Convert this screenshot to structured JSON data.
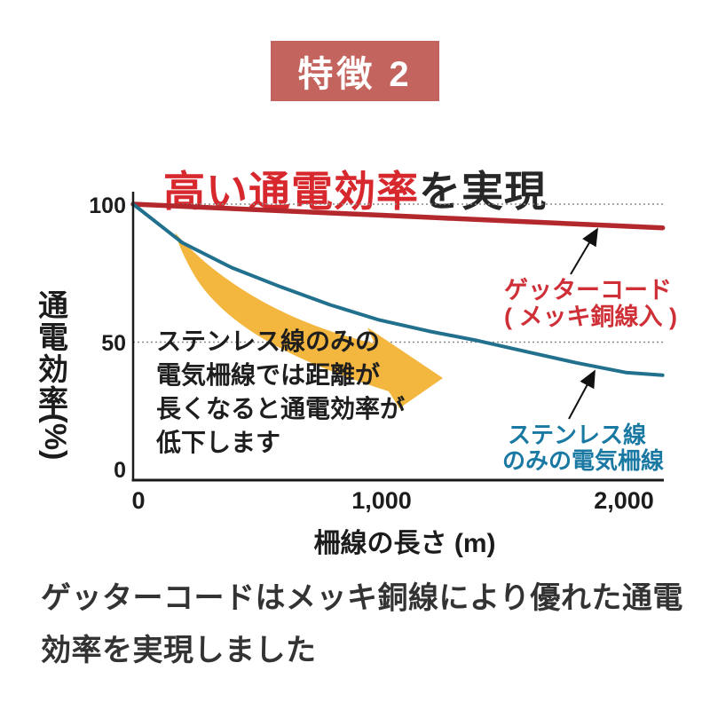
{
  "badge": {
    "label": "特徴 2",
    "bg_color": "#c4645e",
    "text_color": "#ffffff"
  },
  "title": {
    "highlight": "高い通電効率",
    "rest": "を実現",
    "highlight_color": "#d7282e"
  },
  "chart_data": {
    "type": "line",
    "xlabel": "柵線の長さ (m)",
    "ylabel": "通電効率(%)",
    "ylabel_chars": [
      "通",
      "電",
      "効",
      "率"
    ],
    "ylabel_unit": "(%)",
    "xlim": [
      0,
      2150
    ],
    "ylim": [
      0,
      100
    ],
    "grid": "horizontal dotted at 100 and 50",
    "grid_color": "#8a8a8a",
    "axis_color": "#1a1a1a",
    "trend_arrow_color": "#f3b63e",
    "x_ticks": [
      {
        "value": 0,
        "label": "0"
      },
      {
        "value": 1000,
        "label": "1,000"
      },
      {
        "value": 2000,
        "label": "2,000"
      }
    ],
    "y_ticks": [
      {
        "value": 100,
        "label": "100"
      },
      {
        "value": 50,
        "label": "50"
      },
      {
        "value": 0,
        "label": "0"
      }
    ],
    "x": [
      0,
      200,
      400,
      600,
      800,
      1000,
      1200,
      1400,
      1600,
      1800,
      2000,
      2150
    ],
    "series": [
      {
        "name": "ゲッターコード（メッキ銅線入）",
        "color": "#b3282d",
        "values": [
          100,
          99.2,
          98.4,
          97.6,
          96.8,
          96,
          95.2,
          94.4,
          93.6,
          92.8,
          92,
          91.4
        ]
      },
      {
        "name": "ステンレス線のみの電気柵線",
        "color": "#21708e",
        "values": [
          100,
          86,
          77,
          70,
          63.5,
          58,
          54,
          50.5,
          46.5,
          42.5,
          39,
          38
        ]
      }
    ],
    "series_labels": [
      {
        "lines": [
          "ゲッターコード",
          "( メッキ銅線入 )"
        ],
        "color": "#cf3038"
      },
      {
        "lines": [
          "ステンレス線",
          "のみの電気柵線"
        ],
        "color": "#1a79a3"
      }
    ],
    "annotation": {
      "lines": [
        "ステンレス線のみの",
        "電気柵線では距離が",
        "長くなると通電効率が",
        "低下します"
      ]
    }
  },
  "footer": {
    "color": "#333333",
    "lines": [
      "ゲッターコードはメッキ銅線により優れた通電",
      "効率を実現しました"
    ]
  }
}
